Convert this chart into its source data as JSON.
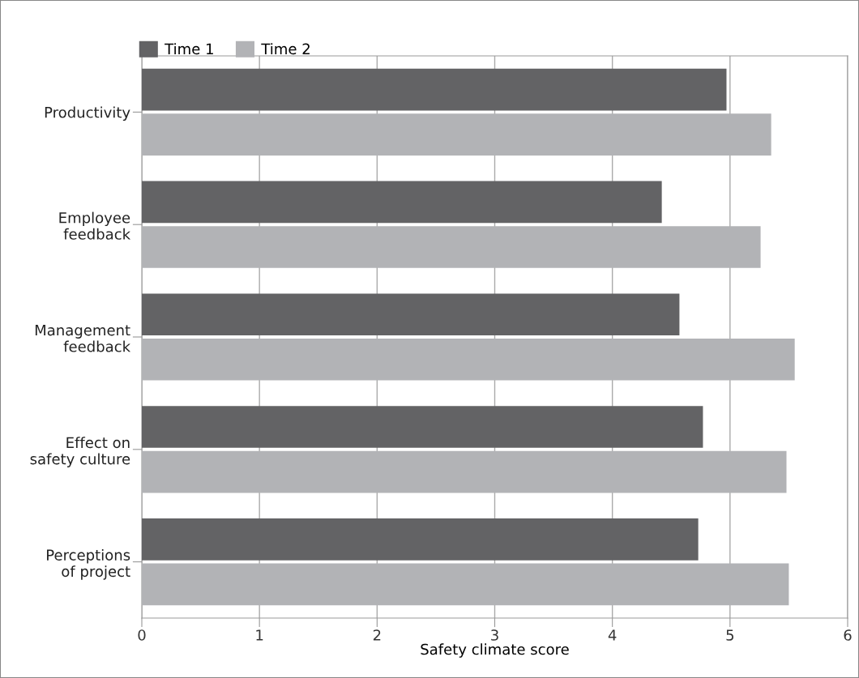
{
  "chart_data": {
    "type": "bar",
    "orientation": "horizontal",
    "xlabel": "Safety climate score",
    "categories": [
      "Productivity",
      "Employee\nfeedback",
      "Management\nfeedback",
      "Effect on\nsafety culture",
      "Perceptions\nof project"
    ],
    "series": [
      {
        "name": "Time 1",
        "color": "#636365",
        "values": [
          4.97,
          4.42,
          4.57,
          4.77,
          4.73
        ]
      },
      {
        "name": "Time 2",
        "color": "#b2b3b6",
        "values": [
          5.35,
          5.26,
          5.55,
          5.48,
          5.5
        ]
      }
    ],
    "xlim": [
      0,
      6
    ],
    "xticks": [
      0,
      1,
      2,
      3,
      4,
      5,
      6
    ],
    "grid": "x",
    "legend": "top left"
  }
}
